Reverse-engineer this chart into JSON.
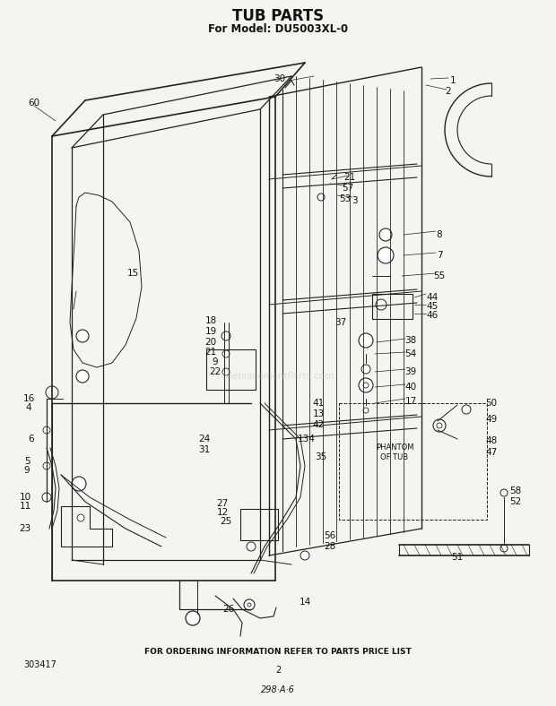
{
  "title": "TUB PARTS",
  "subtitle": "For Model: DU5003XL-0",
  "footer_text": "FOR ORDERING INFORMATION REFER TO PARTS PRICE LIST",
  "part_number_left": "303417",
  "page_number": "2",
  "bottom_code": "298·A·6",
  "background_color": "#f5f5f0",
  "line_color": "#222222",
  "text_color": "#111111",
  "watermark_text": "eReplacementParts.com",
  "title_fontsize": 12,
  "subtitle_fontsize": 8.5,
  "footer_fontsize": 6.5,
  "label_fontsize": 7.5
}
